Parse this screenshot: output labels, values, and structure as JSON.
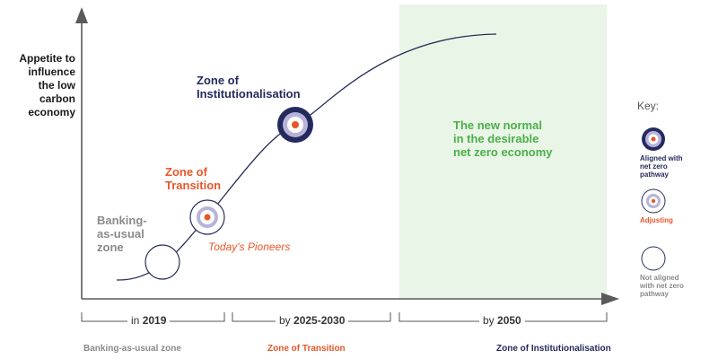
{
  "y_axis_label": "Appetite to\ninfluence\nthe low\ncarbon\neconomy",
  "zones": {
    "banking": "Banking-\nas-usual\nzone",
    "transition": "Zone of\nTransition",
    "institutionalisation": "Zone of\nInstitutionalisation",
    "new_normal": "The new normal\nin the desirable\nnet zero economy"
  },
  "pioneers": "Today's Pioneers",
  "key": {
    "title": "Key:",
    "aligned": "Aligned with\nnet zero\npathway",
    "adjusting": "Adjusting",
    "not_aligned": "Not aligned\nwith net zero\npathway"
  },
  "periods": [
    {
      "prefix": "in ",
      "value": "2019"
    },
    {
      "prefix": "by ",
      "value": "2025-2030"
    },
    {
      "prefix": "by ",
      "value": "2050"
    }
  ],
  "bottom_zones": [
    "Banking-as-usual zone",
    "Zone of Transition",
    "Zone of Institutionalisation"
  ],
  "colors": {
    "navy": "#252a5e",
    "lavender": "#b7b3d9",
    "orange": "#e8562a",
    "grey": "#8a8a8a",
    "green": "#4caf4c",
    "green_bg": "#e9f5e6",
    "axis": "#5a5a5a"
  }
}
